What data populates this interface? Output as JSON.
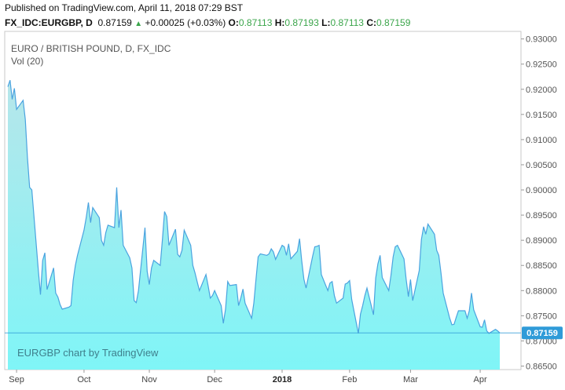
{
  "header": {
    "published": "Published on TradingView.com, April 11, 2018 07:29 BST",
    "symbol": "FX_IDC:EURGBP, D",
    "last": "0.87159",
    "change": "+0.00025 (+0.03%)",
    "o_label": "O:",
    "o": "0.87113",
    "h_label": "H:",
    "h": "0.87193",
    "l_label": "L:",
    "l": "0.87113",
    "c_label": "C:",
    "c": "0.87159"
  },
  "overlay": {
    "title": "EURO / BRITISH POUND, D, FX_IDC",
    "indicator": "Vol (20)",
    "watermark": "EURGBP chart by TradingView"
  },
  "last_price_tag": "0.87159",
  "colors": {
    "line": "#4aa3df",
    "fill_top": "#b7e6ea",
    "fill_bottom": "#7ff5f7",
    "last_price": "#2f9bd8",
    "up": "#3aa54a"
  },
  "chart_data": {
    "type": "area",
    "title": "EURO / BRITISH POUND, D, FX_IDC",
    "x_ticks": [
      "Sep",
      "Oct",
      "Nov",
      "Dec",
      "2018",
      "Feb",
      "Mar",
      "Apr"
    ],
    "y_ticks": [
      "0.93000",
      "0.92500",
      "0.92000",
      "0.91500",
      "0.91000",
      "0.90500",
      "0.90000",
      "0.89500",
      "0.89000",
      "0.88500",
      "0.88000",
      "0.87500",
      "0.87000",
      "0.86500"
    ],
    "ylim": [
      0.8643,
      0.9315
    ],
    "last_price": 0.87159,
    "grid": false,
    "x": [
      "2017-08-28",
      "2017-08-29",
      "2017-08-30",
      "2017-08-31",
      "2017-09-01",
      "2017-09-04",
      "2017-09-05",
      "2017-09-06",
      "2017-09-07",
      "2017-09-08",
      "2017-09-11",
      "2017-09-12",
      "2017-09-13",
      "2017-09-14",
      "2017-09-15",
      "2017-09-18",
      "2017-09-19",
      "2017-09-20",
      "2017-09-21",
      "2017-09-22",
      "2017-09-25",
      "2017-09-26",
      "2017-09-27",
      "2017-09-28",
      "2017-09-29",
      "2017-10-02",
      "2017-10-03",
      "2017-10-04",
      "2017-10-05",
      "2017-10-06",
      "2017-10-09",
      "2017-10-10",
      "2017-10-11",
      "2017-10-12",
      "2017-10-13",
      "2017-10-16",
      "2017-10-17",
      "2017-10-18",
      "2017-10-19",
      "2017-10-20",
      "2017-10-23",
      "2017-10-24",
      "2017-10-25",
      "2017-10-26",
      "2017-10-27",
      "2017-10-30",
      "2017-10-31",
      "2017-11-01",
      "2017-11-02",
      "2017-11-03",
      "2017-11-06",
      "2017-11-07",
      "2017-11-08",
      "2017-11-09",
      "2017-11-10",
      "2017-11-13",
      "2017-11-14",
      "2017-11-15",
      "2017-11-16",
      "2017-11-17",
      "2017-11-20",
      "2017-11-21",
      "2017-11-22",
      "2017-11-23",
      "2017-11-24",
      "2017-11-27",
      "2017-11-28",
      "2017-11-29",
      "2017-11-30",
      "2017-12-01",
      "2017-12-04",
      "2017-12-05",
      "2017-12-06",
      "2017-12-07",
      "2017-12-08",
      "2017-12-11",
      "2017-12-12",
      "2017-12-13",
      "2017-12-14",
      "2017-12-15",
      "2017-12-18",
      "2017-12-19",
      "2017-12-20",
      "2017-12-21",
      "2017-12-22",
      "2017-12-25",
      "2017-12-26",
      "2017-12-27",
      "2017-12-28",
      "2017-12-29",
      "2018-01-01",
      "2018-01-02",
      "2018-01-03",
      "2018-01-04",
      "2018-01-05",
      "2018-01-08",
      "2018-01-09",
      "2018-01-10",
      "2018-01-11",
      "2018-01-12",
      "2018-01-15",
      "2018-01-16",
      "2018-01-17",
      "2018-01-18",
      "2018-01-19",
      "2018-01-22",
      "2018-01-23",
      "2018-01-24",
      "2018-01-25",
      "2018-01-26",
      "2018-01-29",
      "2018-01-30",
      "2018-01-31",
      "2018-02-01",
      "2018-02-02",
      "2018-02-05",
      "2018-02-06",
      "2018-02-07",
      "2018-02-08",
      "2018-02-09",
      "2018-02-12",
      "2018-02-13",
      "2018-02-14",
      "2018-02-15",
      "2018-02-16",
      "2018-02-19",
      "2018-02-20",
      "2018-02-21",
      "2018-02-22",
      "2018-02-23",
      "2018-02-26",
      "2018-02-27",
      "2018-02-28",
      "2018-03-01",
      "2018-03-02",
      "2018-03-05",
      "2018-03-06",
      "2018-03-07",
      "2018-03-08",
      "2018-03-09",
      "2018-03-12",
      "2018-03-13",
      "2018-03-14",
      "2018-03-15",
      "2018-03-16",
      "2018-03-19",
      "2018-03-20",
      "2018-03-21",
      "2018-03-22",
      "2018-03-23",
      "2018-03-26",
      "2018-03-27",
      "2018-03-28",
      "2018-03-29",
      "2018-03-30",
      "2018-04-02",
      "2018-04-03",
      "2018-04-04",
      "2018-04-05",
      "2018-04-06",
      "2018-04-09",
      "2018-04-10",
      "2018-04-11"
    ],
    "values": [
      0.9205,
      0.9218,
      0.918,
      0.9202,
      0.916,
      0.9178,
      0.914,
      0.9065,
      0.9005,
      0.9,
      0.884,
      0.8792,
      0.886,
      0.8875,
      0.8802,
      0.8845,
      0.8795,
      0.8787,
      0.8772,
      0.8763,
      0.8767,
      0.877,
      0.882,
      0.885,
      0.887,
      0.892,
      0.8945,
      0.8975,
      0.8935,
      0.8965,
      0.8945,
      0.89,
      0.889,
      0.8915,
      0.893,
      0.8925,
      0.9005,
      0.8925,
      0.896,
      0.889,
      0.8865,
      0.8845,
      0.878,
      0.8776,
      0.88,
      0.8925,
      0.8838,
      0.8812,
      0.8845,
      0.886,
      0.885,
      0.8902,
      0.8957,
      0.8947,
      0.889,
      0.8922,
      0.8872,
      0.8867,
      0.888,
      0.892,
      0.889,
      0.885,
      0.8835,
      0.8817,
      0.88,
      0.8832,
      0.881,
      0.8785,
      0.879,
      0.88,
      0.877,
      0.8735,
      0.8763,
      0.8818,
      0.881,
      0.8812,
      0.877,
      0.8785,
      0.8803,
      0.8775,
      0.8745,
      0.8775,
      0.8823,
      0.8867,
      0.8873,
      0.887,
      0.8873,
      0.8883,
      0.8877,
      0.8862,
      0.889,
      0.8887,
      0.887,
      0.8893,
      0.8863,
      0.8878,
      0.8903,
      0.886,
      0.8823,
      0.8805,
      0.8868,
      0.8887,
      0.8888,
      0.889,
      0.8832,
      0.88,
      0.8815,
      0.8818,
      0.879,
      0.8775,
      0.8785,
      0.8813,
      0.8815,
      0.882,
      0.8782,
      0.8715,
      0.8753,
      0.877,
      0.879,
      0.8805,
      0.8752,
      0.8825,
      0.8853,
      0.887,
      0.8826,
      0.88,
      0.883,
      0.8867,
      0.8887,
      0.889,
      0.8863,
      0.8822,
      0.8788,
      0.8822,
      0.878,
      0.884,
      0.8902,
      0.8927,
      0.8912,
      0.8932,
      0.8912,
      0.888,
      0.887,
      0.8835,
      0.8795,
      0.8745,
      0.8732,
      0.8733,
      0.8747,
      0.876,
      0.876,
      0.8745,
      0.876,
      0.8795,
      0.8762,
      0.8728,
      0.8727,
      0.8742,
      0.872,
      0.8715,
      0.8723,
      0.872,
      0.87159
    ]
  }
}
